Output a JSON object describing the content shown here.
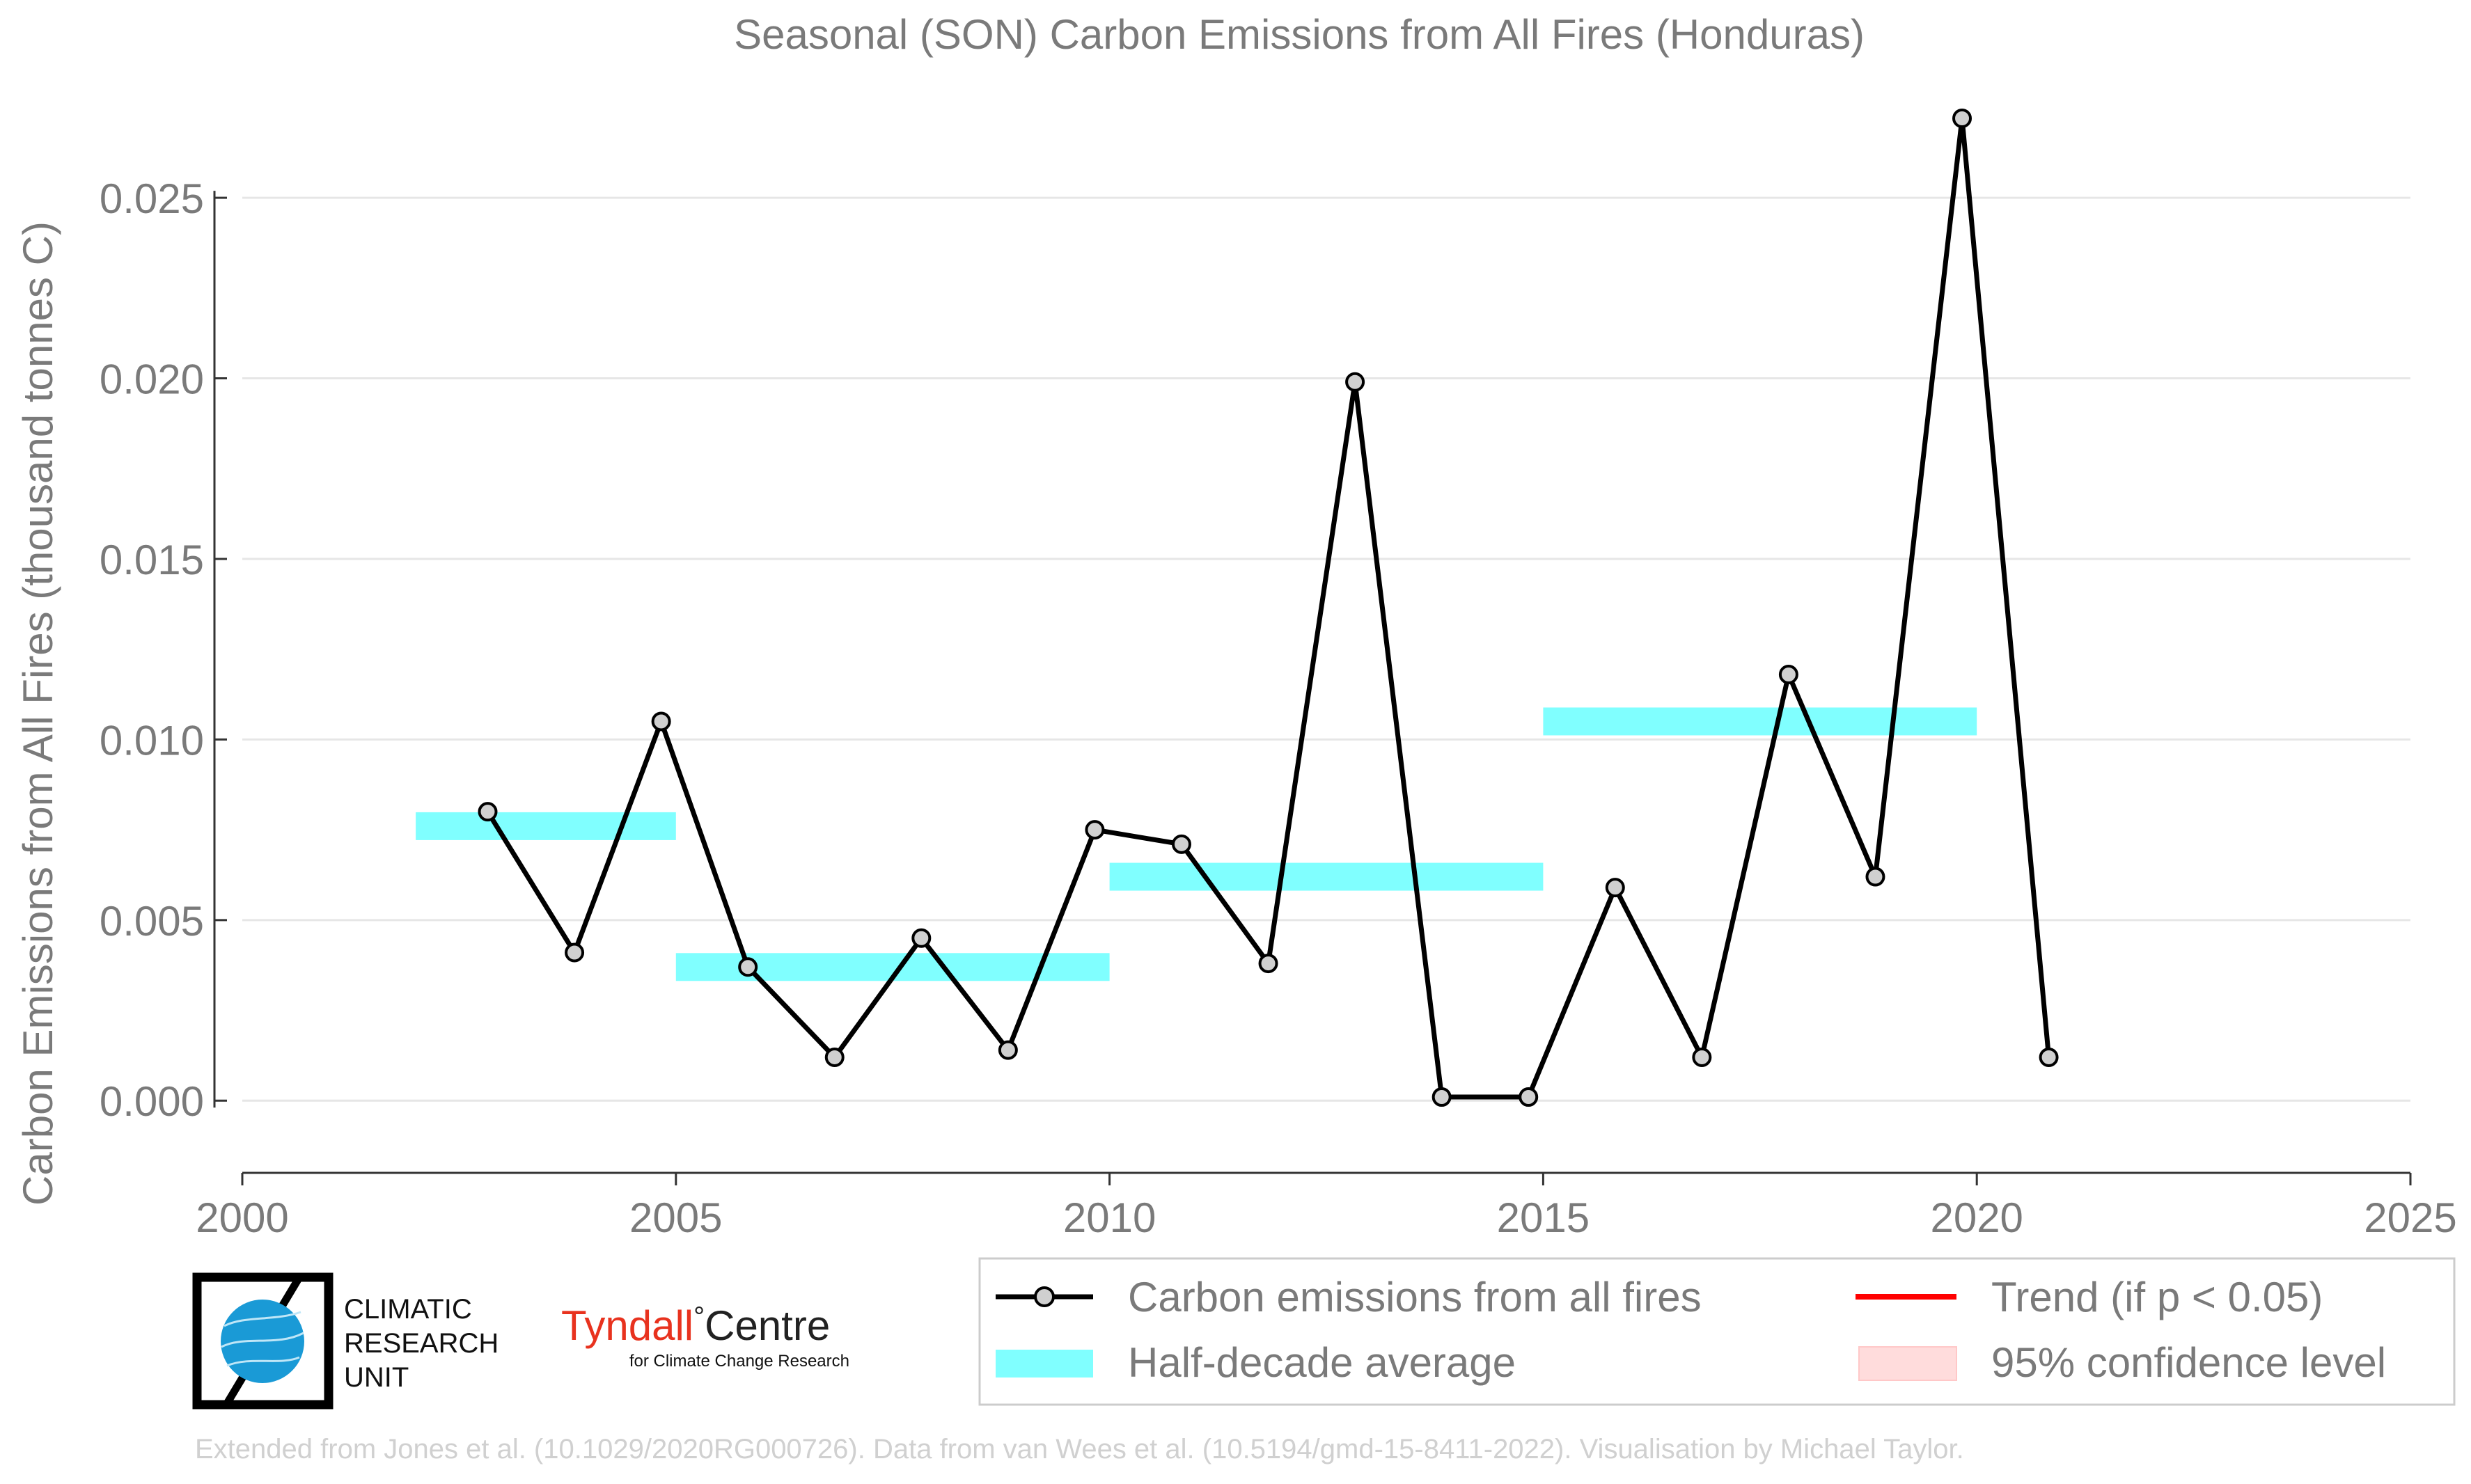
{
  "chart_data": {
    "type": "line",
    "title": "Seasonal (SON) Carbon Emissions from All Fires (Honduras)",
    "xlabel": "",
    "ylabel": "Carbon Emissions from All Fires (thousand tonnes C)",
    "xlim": [
      2000,
      2025
    ],
    "ylim": [
      -0.002,
      0.0272
    ],
    "xticks": [
      2000,
      2005,
      2010,
      2015,
      2020,
      2025
    ],
    "yticks": [
      0.0,
      0.005,
      0.01,
      0.015,
      0.02,
      0.025
    ],
    "ytick_labels": [
      "0.000",
      "0.005",
      "0.010",
      "0.015",
      "0.020",
      "0.025"
    ],
    "grid": "horizontal",
    "series": [
      {
        "name": "Carbon emissions from all fires",
        "color": "#000000",
        "x": [
          2002.83,
          2003.83,
          2004.83,
          2005.83,
          2006.83,
          2007.83,
          2008.83,
          2009.83,
          2010.83,
          2011.83,
          2012.83,
          2013.83,
          2014.83,
          2015.83,
          2016.83,
          2017.83,
          2018.83,
          2019.83,
          2020.83
        ],
        "y": [
          0.008,
          0.0041,
          0.0105,
          0.0037,
          0.0012,
          0.0045,
          0.0014,
          0.0075,
          0.0071,
          0.0038,
          0.0199,
          0.0001,
          0.0001,
          0.0059,
          0.0012,
          0.0118,
          0.0062,
          0.0272,
          0.0012
        ]
      }
    ],
    "half_decade_average": {
      "name": "Half-decade average",
      "color": "#80ffff",
      "segments": [
        {
          "x_start": 2002,
          "x_end": 2005,
          "y": 0.0076
        },
        {
          "x_start": 2005,
          "x_end": 2010,
          "y": 0.0037
        },
        {
          "x_start": 2010,
          "x_end": 2015,
          "y": 0.0062
        },
        {
          "x_start": 2015,
          "x_end": 2020,
          "y": 0.0105
        }
      ]
    },
    "legend": {
      "placement": "bottom",
      "entries": [
        {
          "label": "Carbon emissions from all fires",
          "kind": "line-marker",
          "color": "#000000"
        },
        {
          "label": "Trend (if p < 0.05)",
          "kind": "line",
          "color": "#ff0000"
        },
        {
          "label": "Half-decade average",
          "kind": "band",
          "color": "#80ffff"
        },
        {
          "label": "95% confidence level",
          "kind": "patch",
          "color": "#ffdcdc"
        }
      ]
    }
  },
  "logos": {
    "cru": {
      "line1": "CLIMATIC",
      "line2": "RESEARCH",
      "line3": "UNIT"
    },
    "tyndall": {
      "name_part1": "Tyndall",
      "degree": "°",
      "name_part2": "Centre",
      "subtitle": "for Climate Change Research"
    }
  },
  "footer": {
    "credit": "Extended from Jones et al. (10.1029/2020RG000726). Data from van Wees et al. (10.5194/gmd-15-8411-2022). Visualisation by Michael Taylor."
  },
  "colors": {
    "text": "#7a7a7a",
    "grid": "#e6e6e6",
    "cru_blue": "#1a9ad6",
    "tyndall_red": "#e8321e"
  }
}
